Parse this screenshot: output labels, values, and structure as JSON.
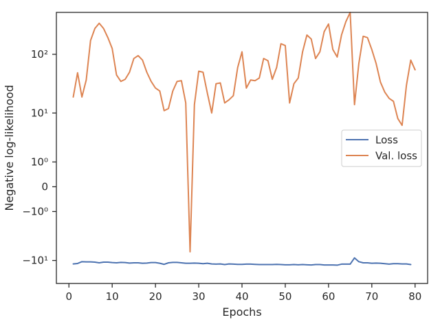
{
  "chart_data": {
    "type": "line",
    "xlabel": "Epochs",
    "ylabel": "Negative log-likelihood",
    "yscale": "symlog",
    "xlim": [
      -2.9,
      82.9
    ],
    "ylim": [
      -25,
      500
    ],
    "xticks": [
      {
        "value": 0,
        "label": "0"
      },
      {
        "value": 10,
        "label": "10"
      },
      {
        "value": 20,
        "label": "20"
      },
      {
        "value": 30,
        "label": "30"
      },
      {
        "value": 40,
        "label": "40"
      },
      {
        "value": 50,
        "label": "50"
      },
      {
        "value": 60,
        "label": "60"
      },
      {
        "value": 70,
        "label": "70"
      },
      {
        "value": 80,
        "label": "80"
      }
    ],
    "yticks": [
      {
        "value": -10,
        "label": "−10¹"
      },
      {
        "value": -1,
        "label": "−10⁰"
      },
      {
        "value": 0,
        "label": "0"
      },
      {
        "value": 1,
        "label": "10⁰"
      },
      {
        "value": 10,
        "label": "10¹"
      },
      {
        "value": 100,
        "label": "10²"
      }
    ],
    "legend": {
      "position": "center-right"
    },
    "series": [
      {
        "name": "Loss",
        "color": "#4c72b0",
        "values": [
          -11.5,
          -11.3,
          -10.5,
          -10.6,
          -10.6,
          -10.7,
          -11.0,
          -10.7,
          -10.7,
          -10.9,
          -11.0,
          -10.8,
          -10.9,
          -11.1,
          -11.0,
          -11.0,
          -11.2,
          -11.1,
          -10.9,
          -10.9,
          -11.2,
          -11.7,
          -11.0,
          -10.8,
          -10.8,
          -11.0,
          -11.2,
          -11.2,
          -11.1,
          -11.2,
          -11.4,
          -11.2,
          -11.5,
          -11.6,
          -11.5,
          -11.8,
          -11.5,
          -11.6,
          -11.7,
          -11.7,
          -11.6,
          -11.6,
          -11.7,
          -11.8,
          -11.8,
          -11.8,
          -11.8,
          -11.7,
          -11.8,
          -11.9,
          -11.9,
          -11.8,
          -11.9,
          -11.8,
          -11.9,
          -12.0,
          -11.8,
          -11.8,
          -12.0,
          -12.0,
          -12.0,
          -12.1,
          -11.6,
          -11.6,
          -11.6,
          -9.0,
          -10.5,
          -11.0,
          -11.0,
          -11.2,
          -11.1,
          -11.2,
          -11.4,
          -11.6,
          -11.4,
          -11.4,
          -11.5,
          -11.5,
          -11.8
        ]
      },
      {
        "name": "Val. loss",
        "color": "#dd8452",
        "values": [
          19,
          49,
          19,
          37,
          170,
          270,
          330,
          270,
          190,
          125,
          45,
          35,
          38,
          50,
          85,
          95,
          80,
          50,
          35,
          27,
          24,
          11,
          12,
          24,
          35,
          36,
          15,
          -7,
          14,
          52,
          50,
          22,
          10,
          32,
          33,
          15,
          17,
          20,
          60,
          110,
          27,
          37,
          36,
          40,
          85,
          78,
          38,
          60,
          150,
          140,
          15,
          32,
          40,
          110,
          210,
          180,
          85,
          110,
          240,
          320,
          120,
          90,
          210,
          350,
          500,
          14,
          70,
          200,
          190,
          120,
          70,
          34,
          23,
          18,
          16,
          8,
          6,
          30,
          80,
          55
        ]
      }
    ]
  }
}
